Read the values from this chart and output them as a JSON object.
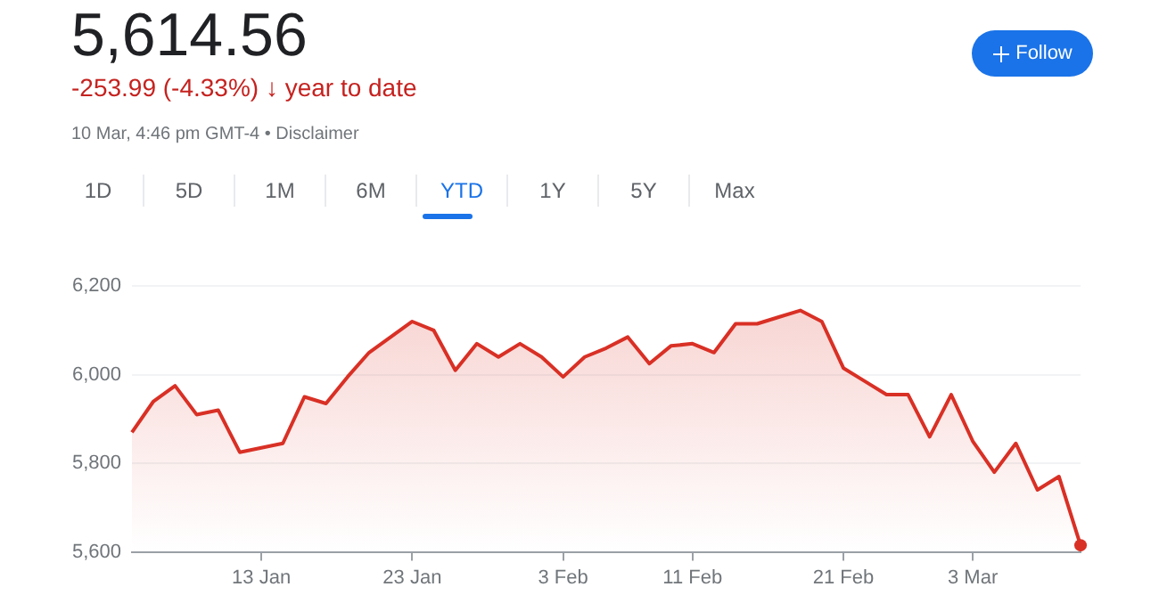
{
  "chart_data": {
    "type": "area",
    "title": "5,614.56",
    "subtitle": "-253.99 (-4.33%) ↓ year to date",
    "annotations": [
      "10 Mar, 4:46 pm GMT-4 • Disclaimer",
      "Follow",
      "1D",
      "5D",
      "1M",
      "6M",
      "YTD",
      "1Y",
      "5Y",
      "Max"
    ],
    "categories": [
      null,
      null,
      null,
      null,
      null,
      null,
      "13 Jan",
      null,
      null,
      null,
      null,
      null,
      null,
      "23 Jan",
      null,
      null,
      null,
      null,
      null,
      null,
      "3 Feb",
      null,
      null,
      null,
      null,
      null,
      "11 Feb",
      null,
      null,
      null,
      null,
      null,
      null,
      "21 Feb",
      null,
      null,
      null,
      null,
      null,
      "3 Mar",
      null,
      null,
      null,
      null,
      null
    ],
    "series": [
      {
        "color": "#d93025",
        "values": [
          5870,
          5940,
          5975,
          5910,
          5920,
          5825,
          5835,
          5845,
          5950,
          5935,
          5995,
          6050,
          6085,
          6120,
          6100,
          6010,
          6070,
          6040,
          6070,
          6040,
          5995,
          6040,
          6060,
          6085,
          6025,
          6065,
          6070,
          6050,
          6115,
          6115,
          6130,
          6145,
          6120,
          6015,
          5985,
          5955,
          5955,
          5860,
          5955,
          5850,
          5780,
          5845,
          5740,
          5770,
          5615
        ]
      }
    ],
    "ylim": [
      5600,
      6200
    ],
    "yticks": [
      {
        "value": 5600,
        "label": "5,600"
      },
      {
        "value": 5800,
        "label": "5,800"
      },
      {
        "value": 6000,
        "label": "6,000"
      },
      {
        "value": 6200,
        "label": "6,200"
      }
    ],
    "grid": "y",
    "legend": false
  }
}
